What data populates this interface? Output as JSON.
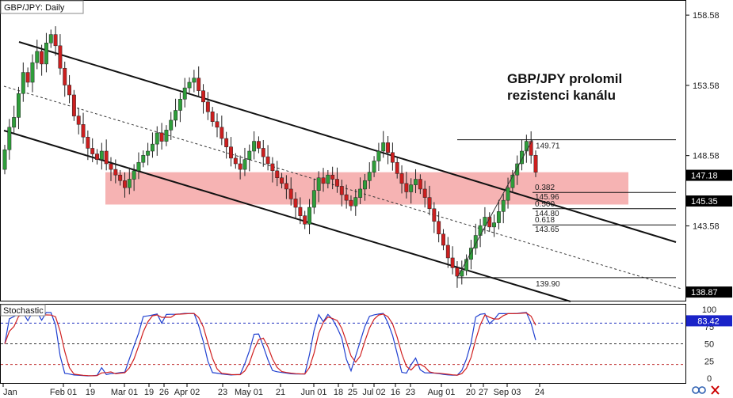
{
  "chart_data": {
    "type": "candlestick",
    "symbol_label": "GBP/JPY: Daily",
    "headline_line1": "GBP/JPY prolomil",
    "headline_line2": "rezistenci kanálu",
    "price_axis": {
      "ticks": [
        "158.58",
        "153.58",
        "148.58",
        "143.58"
      ],
      "range": [
        138.2,
        159.6
      ]
    },
    "price_tags": [
      {
        "value": 147.18,
        "label": "147.18",
        "style": "dark"
      },
      {
        "value": 145.35,
        "label": "145.35",
        "style": "dark"
      },
      {
        "value": 138.87,
        "label": "138.87",
        "style": "dark"
      }
    ],
    "x_labels": [
      "Jan",
      "Feb 01",
      "19",
      "Mar 01",
      "19",
      "26",
      "Apr 02",
      "23",
      "May 01",
      "21",
      "Jun 01",
      "18",
      "25",
      "Jul 02",
      "16",
      "23",
      "Aug 01",
      "20",
      "27",
      "Sep 03",
      "24"
    ],
    "resistance_zone": {
      "high": 147.4,
      "low": 145.1
    },
    "fibonacci": {
      "high": 149.71,
      "low": 139.9,
      "levels": [
        {
          "ratio": "0.382",
          "price": "145.96"
        },
        {
          "ratio": "0.500",
          "price": "144.80"
        },
        {
          "ratio": "0.618",
          "price": "143.65"
        }
      ],
      "high_label": "149.71",
      "low_label": "139.90"
    },
    "stochastic": {
      "label": "Stochastic",
      "ticks": [
        "100",
        "75",
        "50",
        "25",
        "0"
      ],
      "value_tag": "83.42",
      "overbought": 80,
      "midline": 50,
      "oversold": 20
    },
    "ohlc_closes": [
      149.0,
      150.6,
      151.3,
      153.0,
      154.5,
      153.8,
      155.2,
      156.0,
      155.1,
      156.6,
      157.2,
      156.4,
      154.8,
      153.6,
      152.9,
      151.4,
      150.8,
      149.9,
      149.1,
      148.7,
      148.3,
      148.9,
      148.0,
      147.6,
      147.2,
      146.8,
      146.3,
      146.9,
      147.5,
      148.1,
      148.6,
      148.9,
      149.4,
      150.2,
      149.6,
      150.4,
      151.1,
      151.8,
      152.6,
      153.4,
      153.8,
      154.1,
      153.2,
      152.4,
      151.7,
      151.0,
      150.6,
      149.8,
      149.2,
      148.4,
      148.0,
      147.6,
      148.3,
      148.9,
      149.6,
      149.1,
      148.5,
      148.0,
      147.5,
      147.0,
      146.6,
      146.2,
      145.5,
      144.9,
      144.3,
      143.7,
      144.9,
      146.1,
      147.0,
      146.6,
      147.2,
      146.9,
      146.4,
      145.8,
      145.4,
      145.0,
      145.6,
      146.2,
      146.8,
      147.4,
      148.2,
      148.9,
      149.5,
      148.8,
      148.1,
      147.3,
      146.6,
      146.0,
      146.5,
      146.9,
      146.2,
      145.6,
      144.8,
      143.9,
      143.0,
      142.2,
      141.3,
      140.6,
      140.0,
      140.4,
      141.2,
      142.0,
      142.9,
      143.6,
      144.2,
      143.5,
      143.8,
      144.6,
      145.4,
      146.3,
      147.2,
      148.0,
      148.9,
      149.6,
      148.6,
      147.4
    ]
  }
}
